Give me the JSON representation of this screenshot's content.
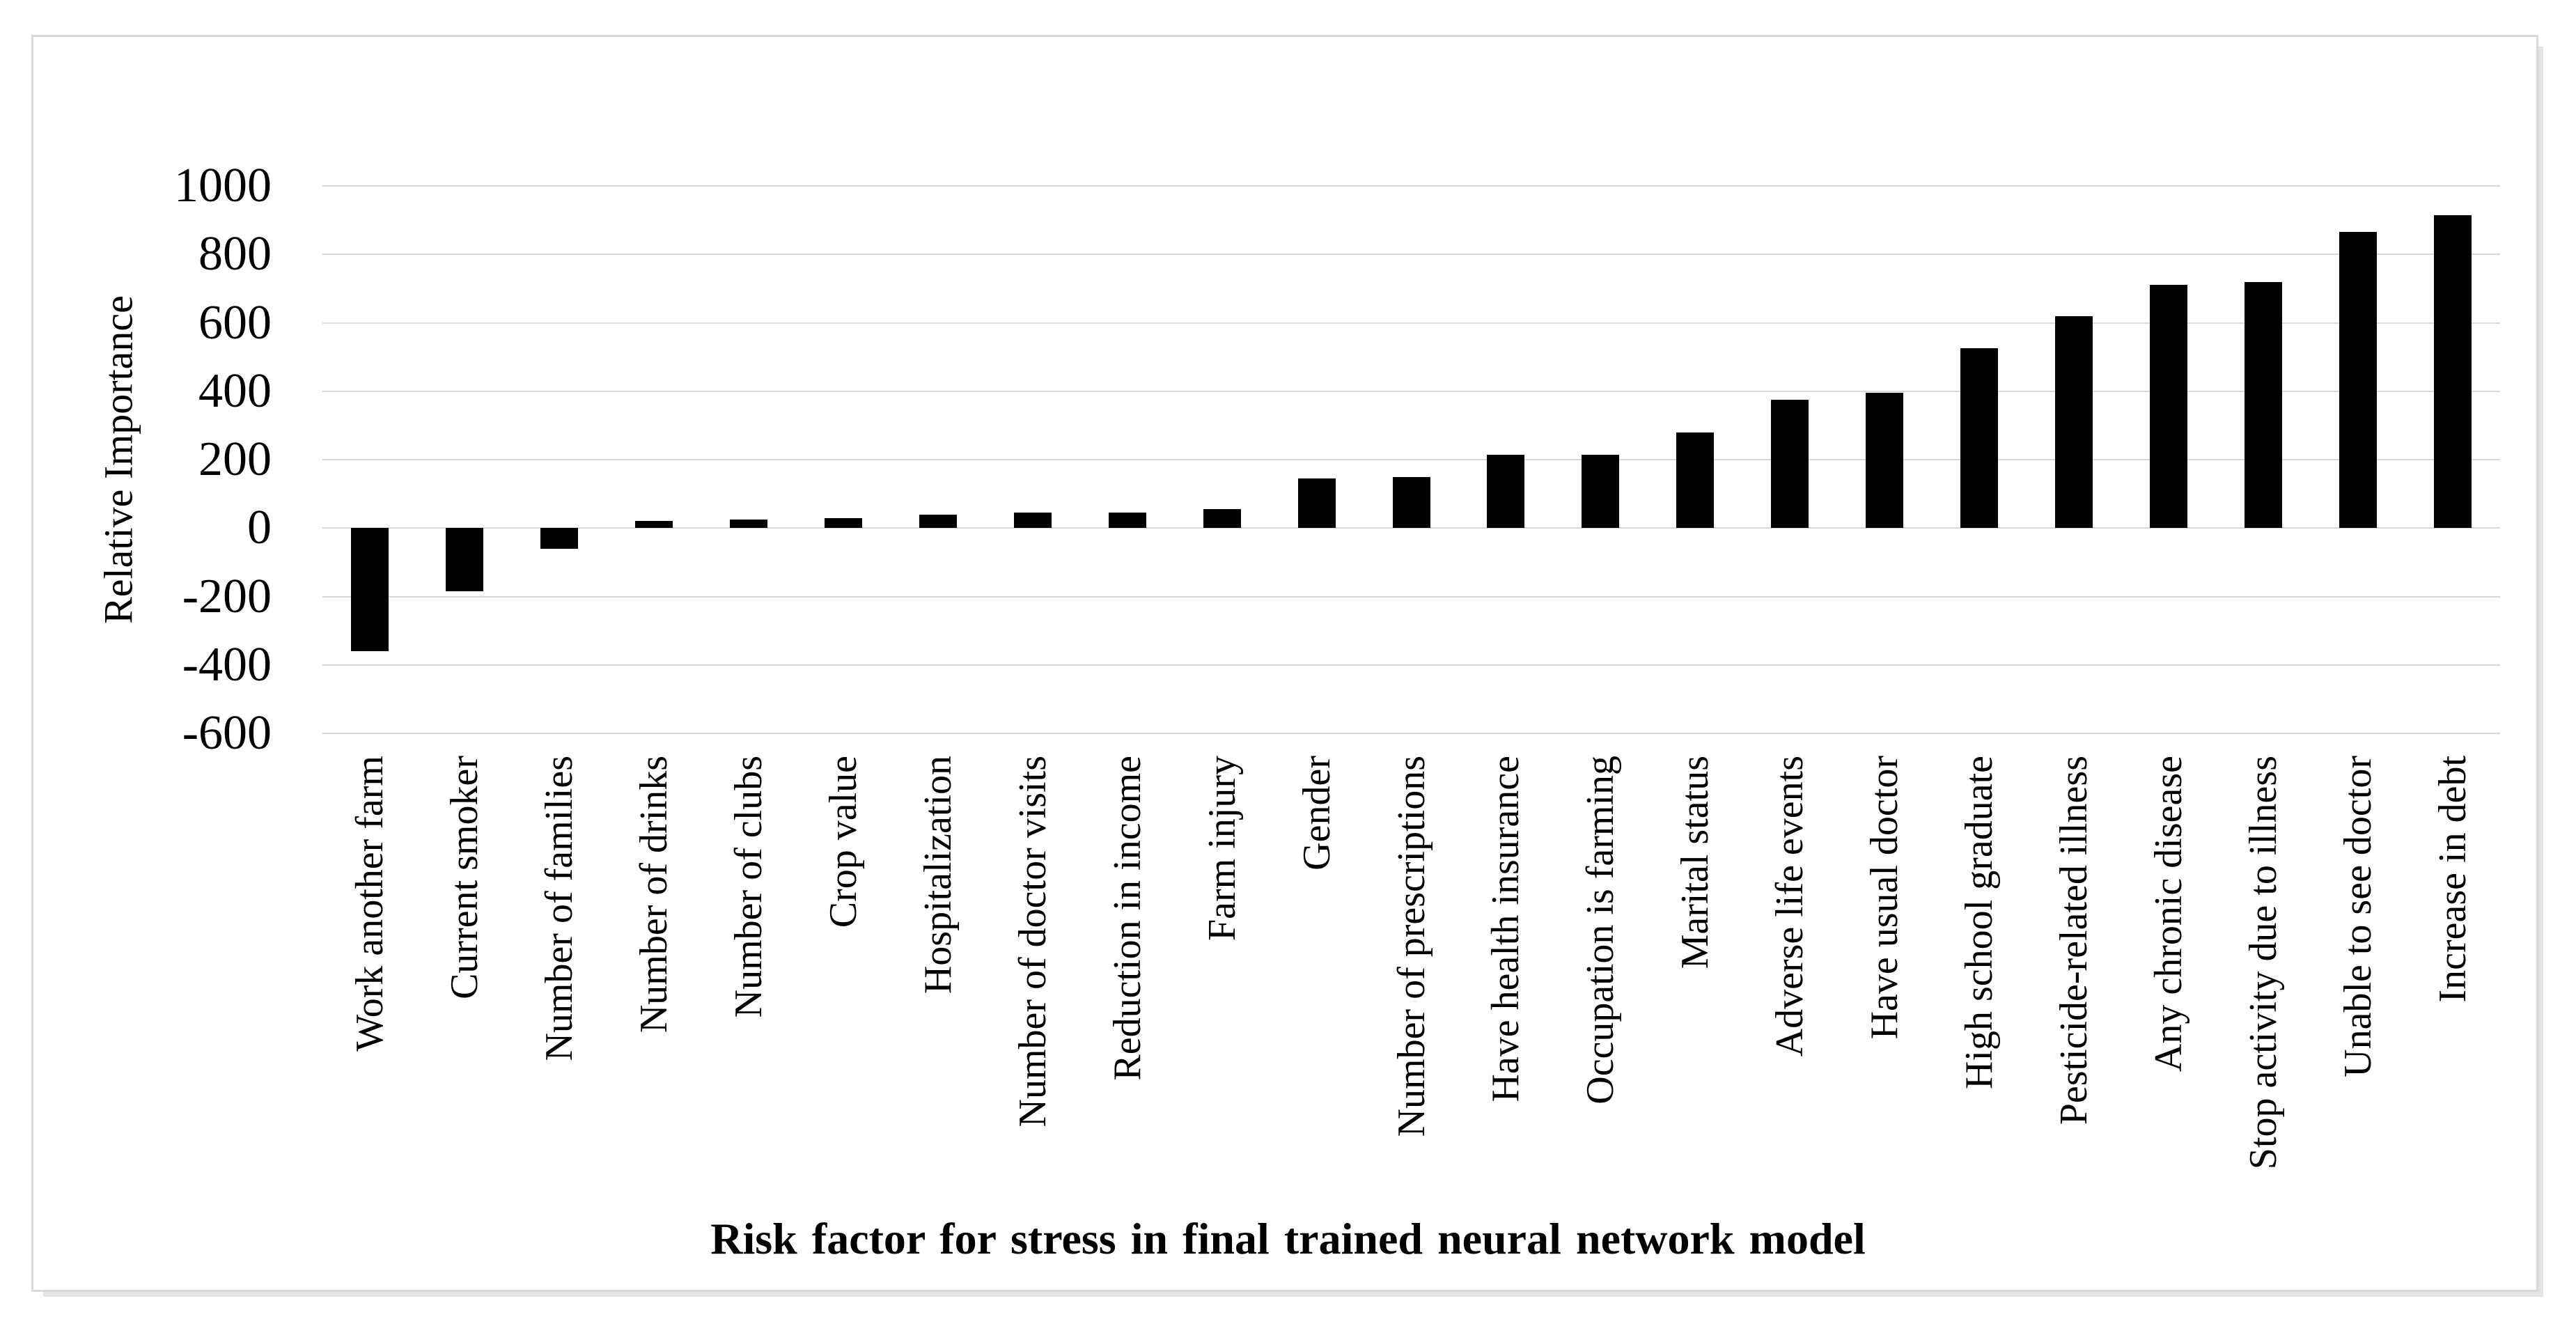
{
  "figure": {
    "background": "#ffffff",
    "frame_border_color": "#d9d9d9"
  },
  "chart_data": {
    "type": "bar",
    "title": "",
    "xlabel": "Risk factor for stress in final trained neural network model",
    "ylabel": "Relative Importance",
    "ylim": [
      -600,
      1000
    ],
    "yticks": [
      1000,
      800,
      600,
      400,
      200,
      0,
      -200,
      -400,
      -600
    ],
    "grid": true,
    "legend": "none",
    "bar_color": "#000000",
    "gridline_color": "#d9d9d9",
    "categories": [
      "Work another farm",
      "Current smoker",
      "Number of families",
      "Number of drinks",
      "Number of clubs",
      "Crop value",
      "Hospitalization",
      "Number of doctor visits",
      "Reduction in income",
      "Farm injury",
      "Gender",
      "Number of prescriptions",
      "Have health insurance",
      "Occupation is farming",
      "Marital status",
      "Adverse life events",
      "Have usual doctor",
      "High school graduate",
      "Pesticide-related illness",
      "Any chronic disease",
      "Stop activity due to illness",
      "Unable to see doctor",
      "Increase in debt"
    ],
    "values": [
      -360,
      -185,
      -60,
      20,
      25,
      30,
      40,
      45,
      45,
      55,
      145,
      150,
      215,
      215,
      280,
      375,
      395,
      525,
      620,
      710,
      720,
      865,
      915
    ]
  }
}
